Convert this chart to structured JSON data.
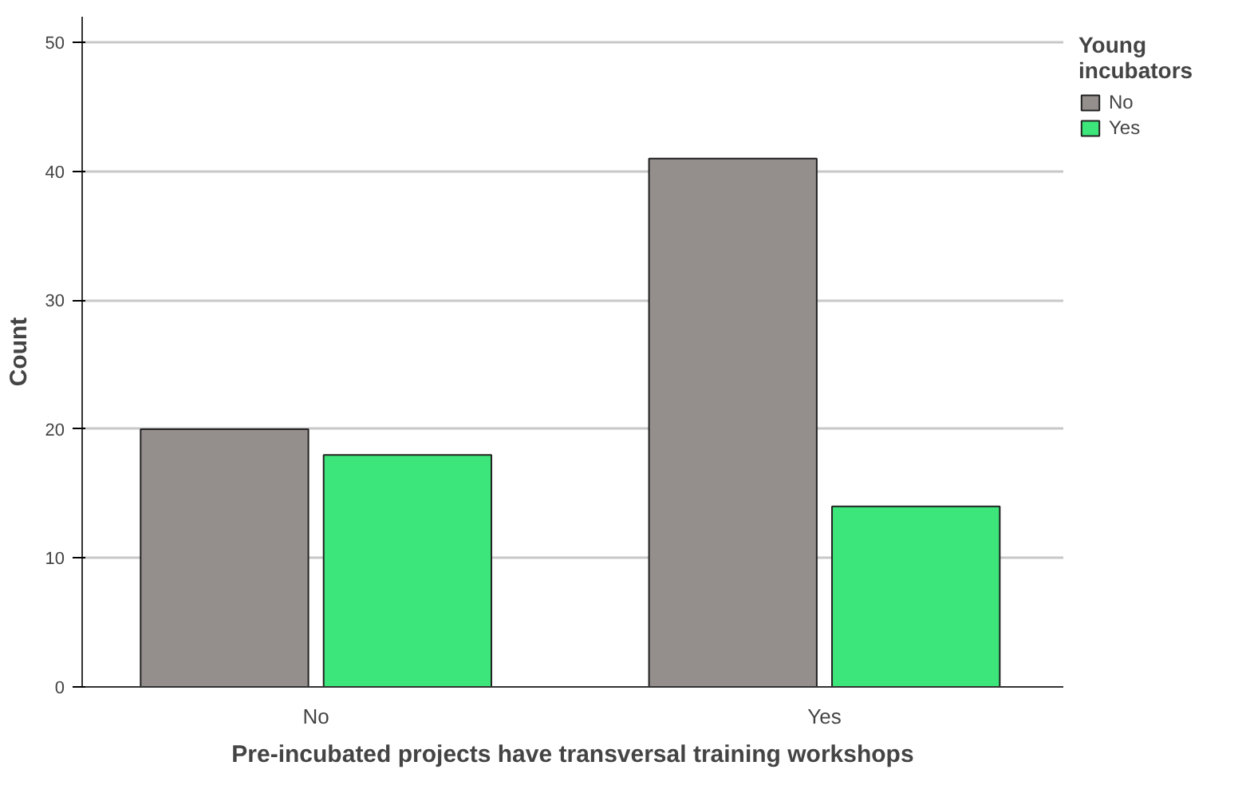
{
  "chart_data": {
    "type": "bar",
    "xlabel": "Pre-incubated projects have transversal training workshops",
    "ylabel": "Count",
    "legend_title": "Young incubators",
    "categories": [
      "No",
      "Yes"
    ],
    "series": [
      {
        "name": "No",
        "color": "#948f8c",
        "values": [
          20,
          41
        ]
      },
      {
        "name": "Yes",
        "color": "#3de67a",
        "values": [
          18,
          14
        ]
      }
    ],
    "ylim": [
      0,
      52
    ],
    "yticks": [
      0,
      10,
      20,
      30,
      40,
      50
    ],
    "grid": "y",
    "legend": "top right"
  }
}
